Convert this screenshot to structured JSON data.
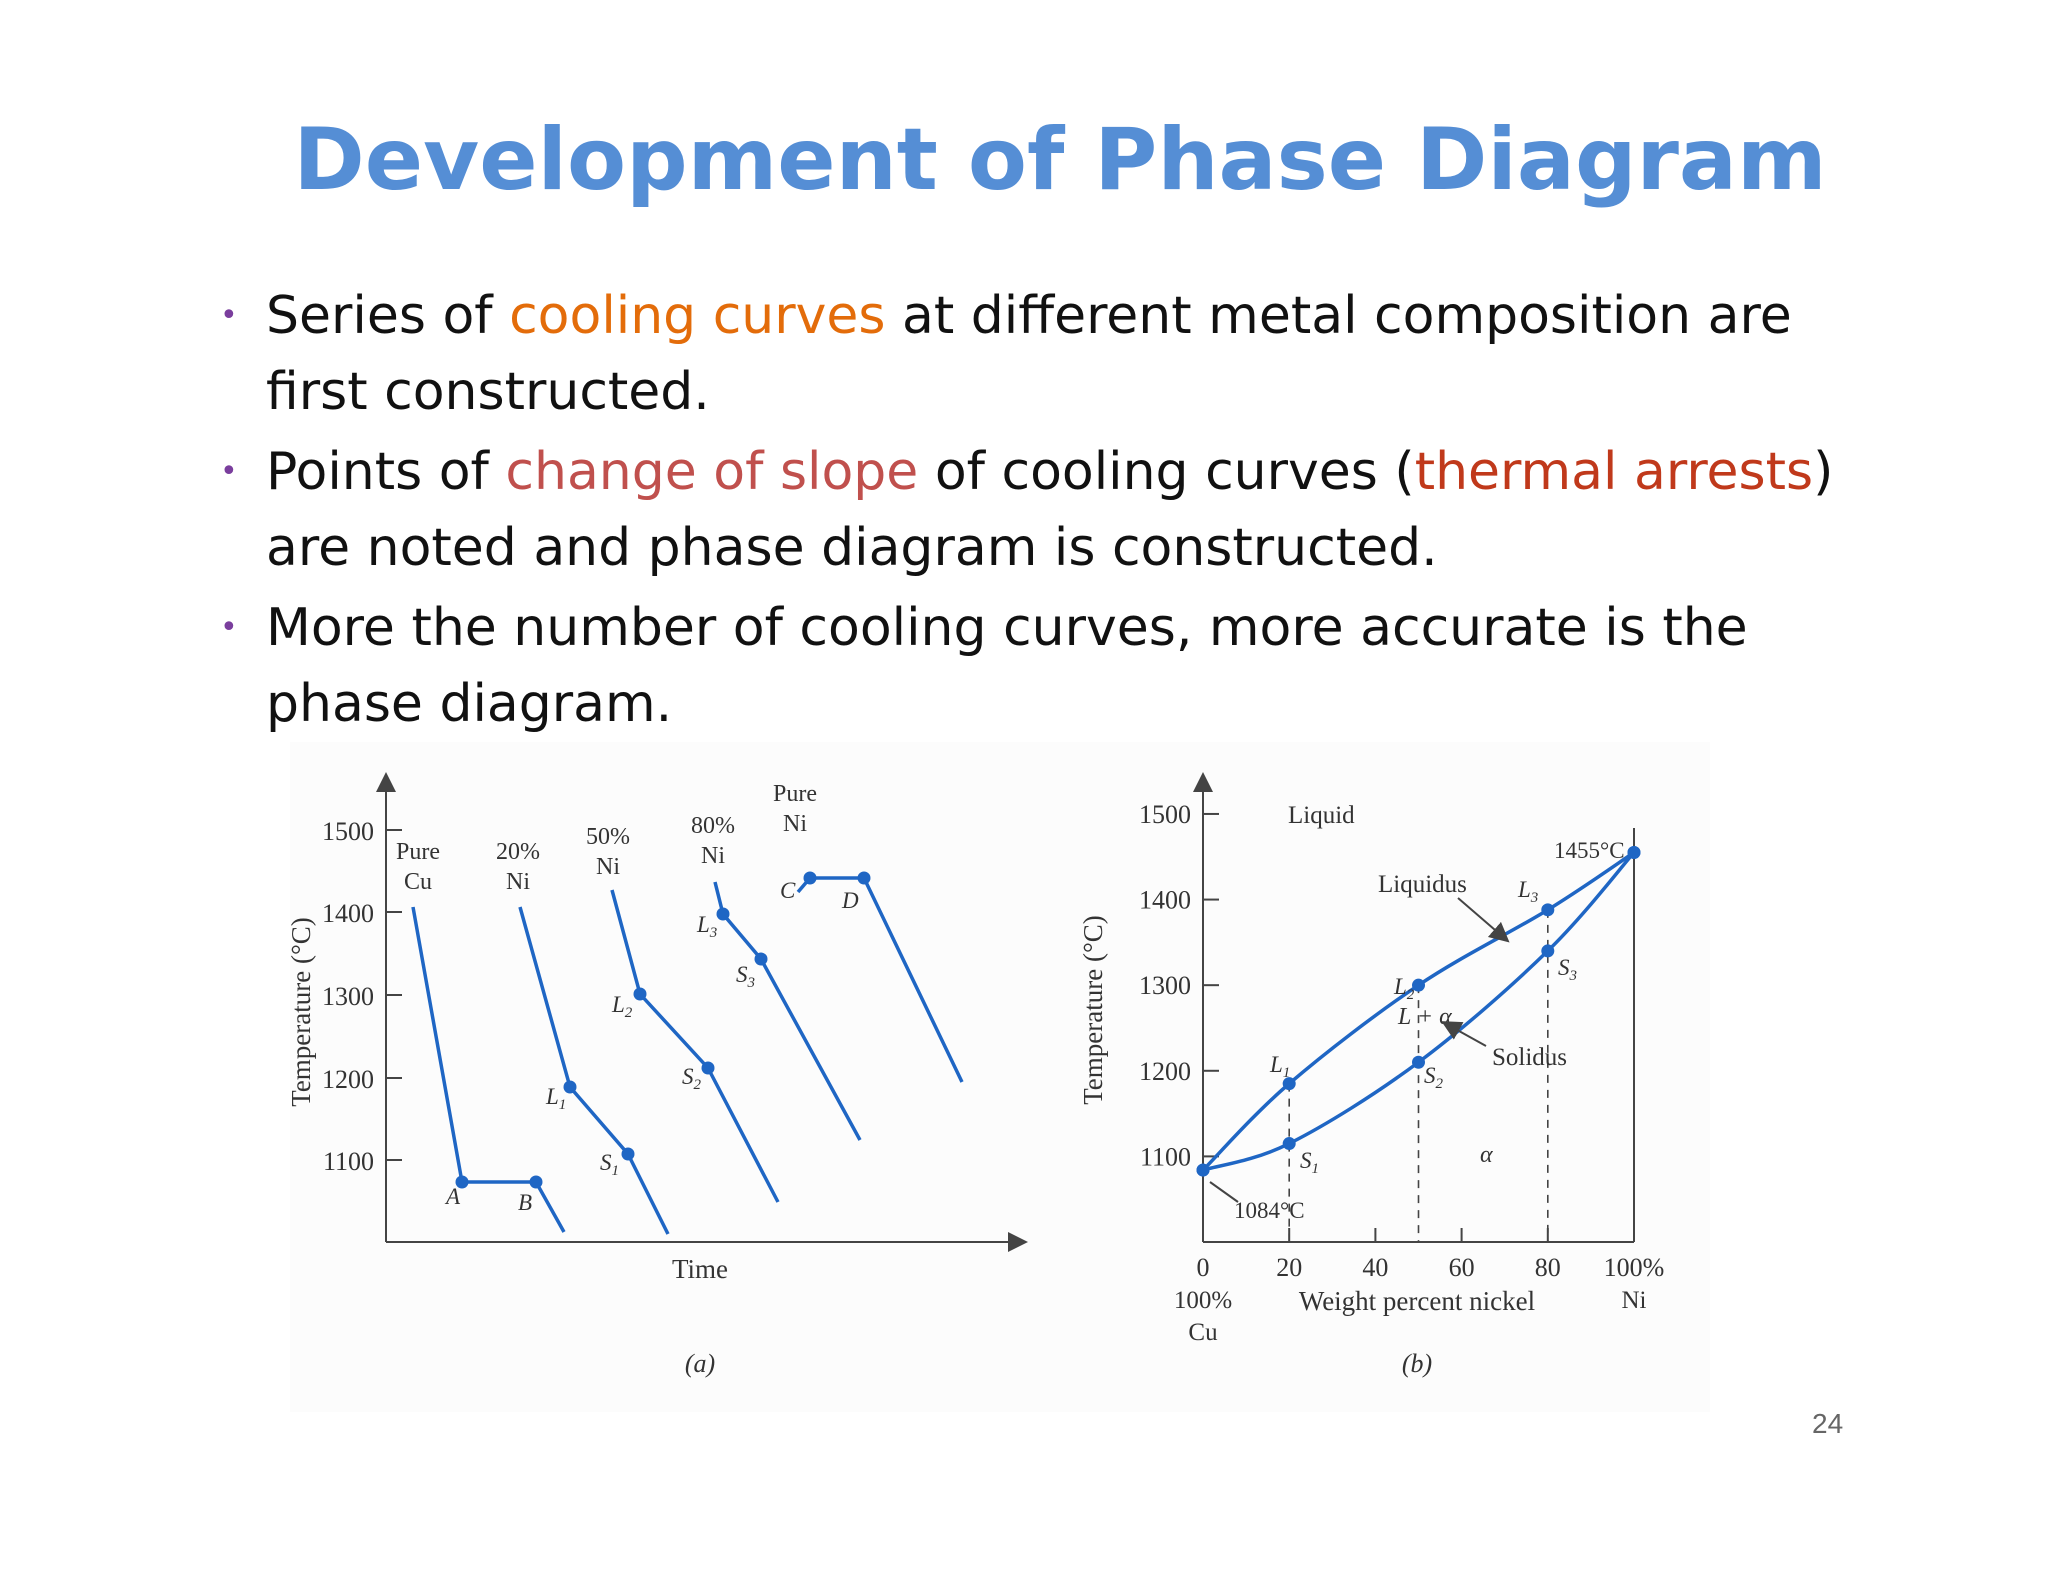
{
  "slide": {
    "title": "Development  of Phase Diagram",
    "page_number": "24"
  },
  "bullets": [
    {
      "parts": [
        " Series of ",
        "cooling curves",
        " at different metal composition are first constructed."
      ]
    },
    {
      "parts": [
        " Points of ",
        "change of slope",
        " of cooling curves (",
        "thermal arrests",
        ")  are noted and phase diagram is constructed."
      ]
    },
    {
      "parts": [
        " More the number of cooling curves, more accurate is the phase diagram."
      ]
    }
  ],
  "colors": {
    "title": "#558ed5",
    "curve": "#1f66c4",
    "cooling_curves": "#e36c0a",
    "change_of_slope": "#c0504d",
    "thermal_arrests": "#c0391b"
  },
  "figure_a": {
    "caption": "(a)",
    "x_label": "Time",
    "y_label": "Temperature (°C)",
    "y_ticks": [
      "1100",
      "1200",
      "1300",
      "1400",
      "1500"
    ],
    "curve_labels": [
      {
        "line1": "Pure",
        "line2": "Cu"
      },
      {
        "line1": "20%",
        "line2": "Ni"
      },
      {
        "line1": "50%",
        "line2": "Ni"
      },
      {
        "line1": "80%",
        "line2": "Ni"
      },
      {
        "line1": "Pure",
        "line2": "Ni"
      }
    ],
    "point_labels": {
      "A": "A",
      "B": "B",
      "C": "C",
      "D": "D",
      "L1": "L",
      "L2": "L",
      "L3": "L",
      "S1": "S",
      "S2": "S",
      "S3": "S",
      "sub1": "1",
      "sub2": "2",
      "sub3": "3"
    }
  },
  "figure_b": {
    "caption": "(b)",
    "y_label": "Temperature (°C)",
    "y_ticks": [
      "1100",
      "1200",
      "1300",
      "1400",
      "1500"
    ],
    "x_ticks": [
      "0",
      "20",
      "40",
      "60",
      "80",
      "100%"
    ],
    "x_label": "Weight percent nickel",
    "left_comp": {
      "line1": "100%",
      "line2": "Cu"
    },
    "right_comp": "Ni",
    "region_labels": {
      "liquid": "Liquid",
      "two_phase": "L + α",
      "alpha": "α"
    },
    "line_labels": {
      "liquidus": "Liquidus",
      "solidus": "Solidus"
    },
    "temperature_labels": {
      "ni_melt": "1455°C",
      "cu_melt": "1084°C"
    },
    "point_labels": {
      "L": "L",
      "S": "S",
      "sub1": "1",
      "sub2": "2",
      "sub3": "3"
    },
    "chart_data": {
      "type": "line",
      "xlabel": "Weight percent nickel",
      "ylabel": "Temperature (°C)",
      "xlim": [
        0,
        100
      ],
      "ylim": [
        1000,
        1500
      ],
      "series": [
        {
          "name": "Liquidus",
          "x": [
            0,
            20,
            50,
            80,
            100
          ],
          "y": [
            1084,
            1185,
            1300,
            1388,
            1455
          ]
        },
        {
          "name": "Solidus",
          "x": [
            0,
            20,
            50,
            80,
            100
          ],
          "y": [
            1084,
            1115,
            1210,
            1340,
            1455
          ]
        }
      ]
    }
  }
}
